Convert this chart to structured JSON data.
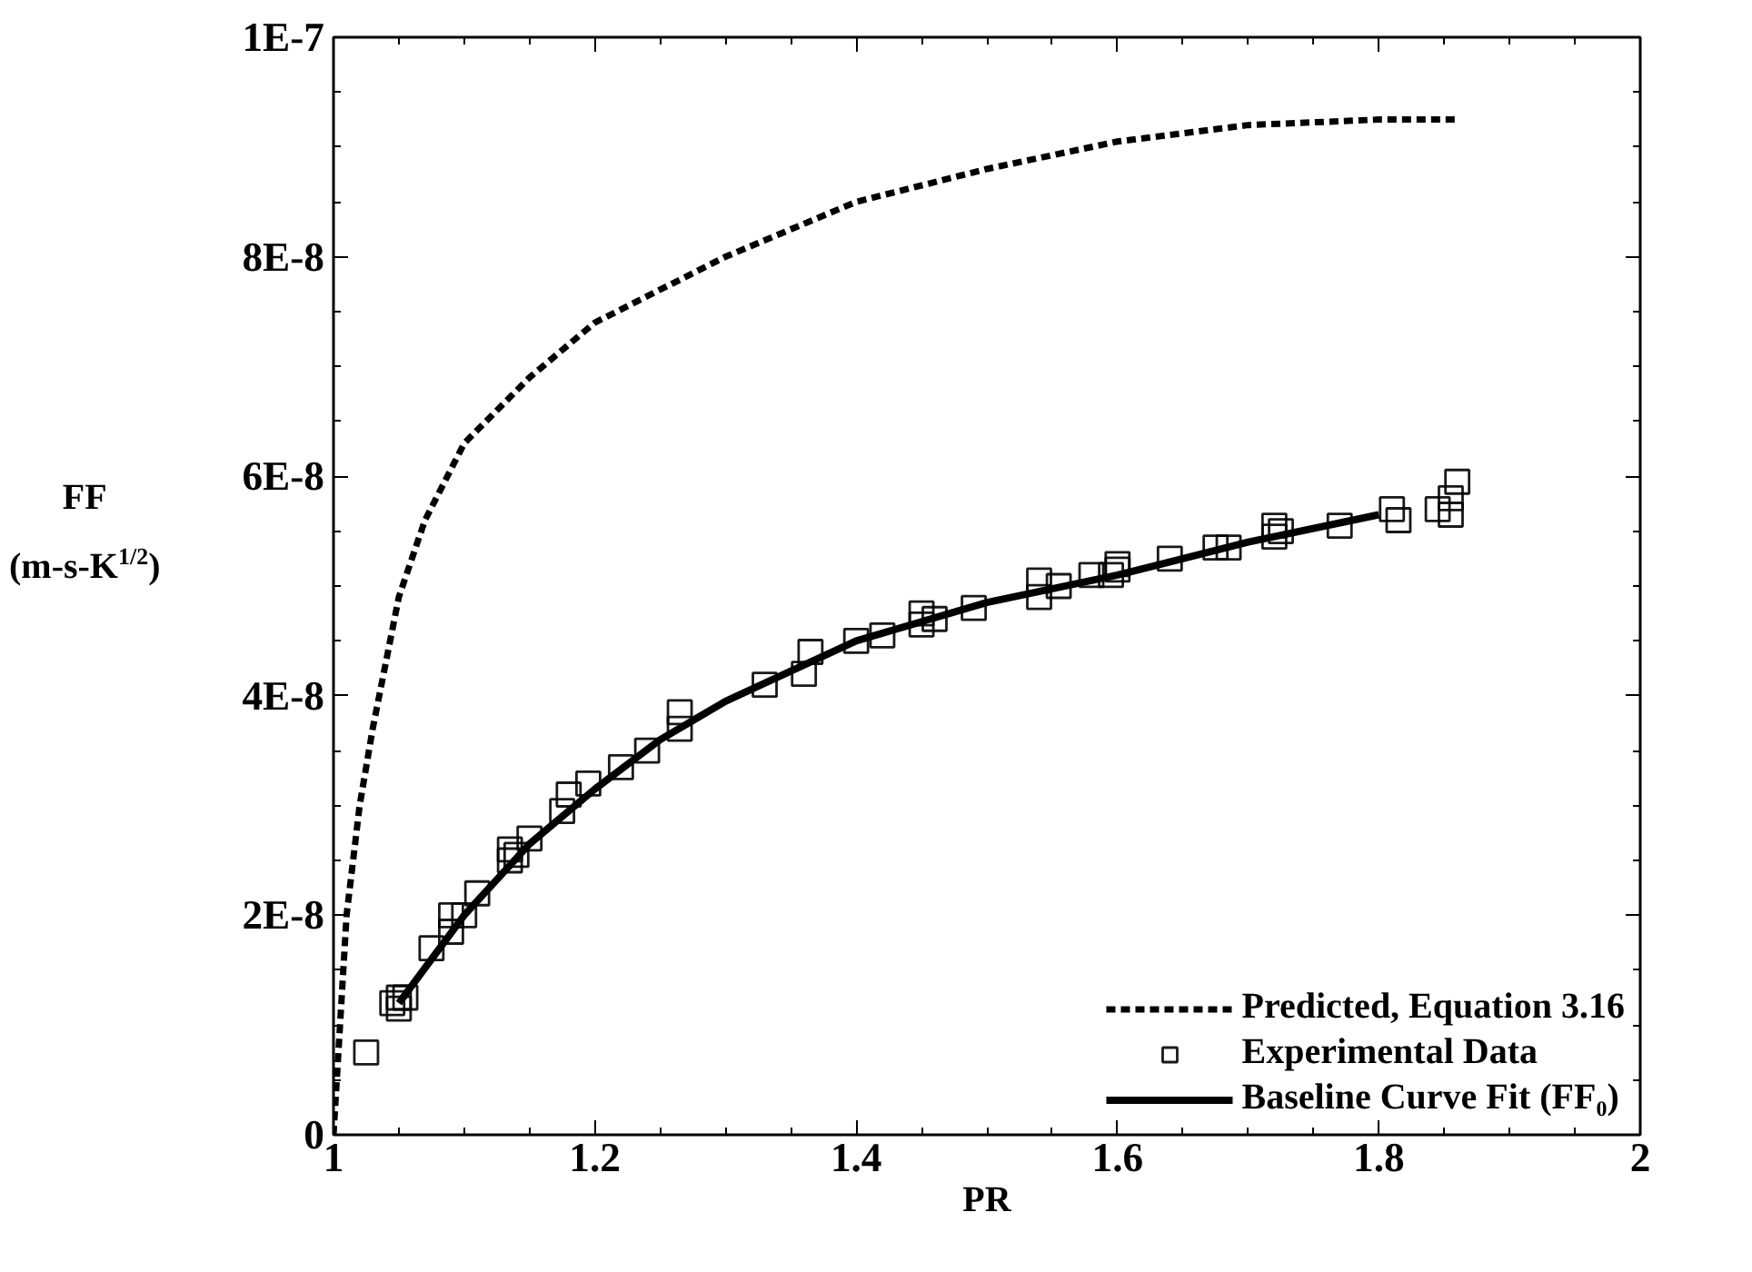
{
  "chart_data": {
    "type": "line",
    "xlabel": "PR",
    "ylabel": "FF (m-s-K$^{1/2}$)",
    "xlim": [
      1,
      2
    ],
    "ylim": [
      0,
      1e-07
    ],
    "xticks": [
      1,
      1.2,
      1.4,
      1.6,
      1.8,
      2
    ],
    "yticks": [
      {
        "value": 0,
        "label": "0"
      },
      {
        "value": 2e-08,
        "label": "2E-8"
      },
      {
        "value": 4e-08,
        "label": "4E-8"
      },
      {
        "value": 6e-08,
        "label": "6E-8"
      },
      {
        "value": 8e-08,
        "label": "8E-8"
      },
      {
        "value": 1e-07,
        "label": "1E-7"
      }
    ],
    "grid": false,
    "legend": "bottom right",
    "series": [
      {
        "name": "Predicted, Equation 3.16",
        "line_style": "dashed",
        "color": "#000000",
        "x": [
          1.0,
          1.005,
          1.01,
          1.02,
          1.03,
          1.05,
          1.07,
          1.1,
          1.15,
          1.2,
          1.3,
          1.4,
          1.5,
          1.6,
          1.7,
          1.8,
          1.86
        ],
        "values": [
          0,
          1e-08,
          2e-08,
          3e-08,
          3.7e-08,
          4.9e-08,
          5.6e-08,
          6.3e-08,
          6.9e-08,
          7.4e-08,
          8e-08,
          8.5e-08,
          8.8e-08,
          9.05e-08,
          9.2e-08,
          9.25e-08,
          9.25e-08
        ]
      },
      {
        "name": "Experimental Data",
        "type": "scatter",
        "marker": "square",
        "color": "#000000",
        "x": [
          1.025,
          1.05,
          1.05,
          1.045,
          1.055,
          1.075,
          1.09,
          1.09,
          1.1,
          1.11,
          1.135,
          1.135,
          1.14,
          1.15,
          1.175,
          1.18,
          1.195,
          1.22,
          1.24,
          1.265,
          1.265,
          1.33,
          1.36,
          1.365,
          1.4,
          1.42,
          1.45,
          1.45,
          1.46,
          1.49,
          1.54,
          1.54,
          1.555,
          1.58,
          1.595,
          1.6,
          1.6,
          1.64,
          1.675,
          1.685,
          1.72,
          1.72,
          1.725,
          1.77,
          1.81,
          1.815,
          1.845,
          1.855,
          1.855,
          1.86
        ],
        "values": [
          7.5e-09,
          1.15e-08,
          1.25e-08,
          1.2e-08,
          1.25e-08,
          1.7e-08,
          1.85e-08,
          2e-08,
          2e-08,
          2.2e-08,
          2.5e-08,
          2.6e-08,
          2.55e-08,
          2.7e-08,
          2.95e-08,
          3.1e-08,
          3.2e-08,
          3.35e-08,
          3.5e-08,
          3.7e-08,
          3.85e-08,
          4.1e-08,
          4.2e-08,
          4.4e-08,
          4.5e-08,
          4.55e-08,
          4.65e-08,
          4.75e-08,
          4.7e-08,
          4.8e-08,
          4.9e-08,
          5.05e-08,
          5e-08,
          5.1e-08,
          5.1e-08,
          5.15e-08,
          5.2e-08,
          5.25e-08,
          5.35e-08,
          5.35e-08,
          5.45e-08,
          5.55e-08,
          5.5e-08,
          5.55e-08,
          5.7e-08,
          5.6e-08,
          5.7e-08,
          5.65e-08,
          5.8e-08,
          5.95e-08
        ]
      },
      {
        "name": "Baseline Curve Fit (FF₀)",
        "line_style": "solid",
        "color": "#000000",
        "x": [
          1.05,
          1.1,
          1.15,
          1.2,
          1.25,
          1.3,
          1.4,
          1.5,
          1.6,
          1.7,
          1.8
        ],
        "values": [
          1.2e-08,
          2e-08,
          2.65e-08,
          3.15e-08,
          3.6e-08,
          3.95e-08,
          4.5e-08,
          4.85e-08,
          5.1e-08,
          5.4e-08,
          5.65e-08
        ]
      }
    ]
  }
}
